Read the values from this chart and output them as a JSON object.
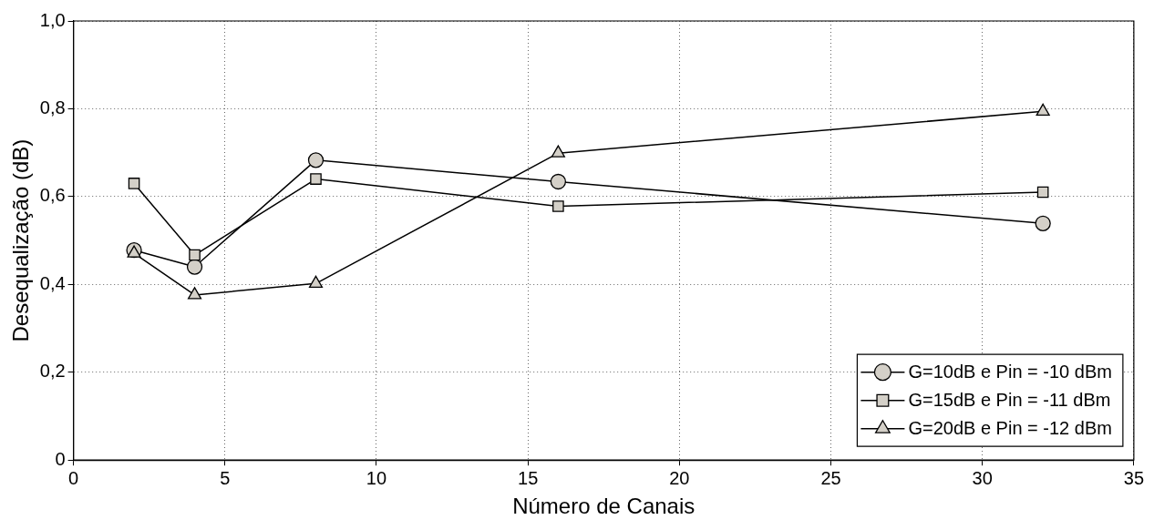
{
  "chart_data": {
    "type": "line",
    "xlabel": "Número de Canais",
    "ylabel": "Desequalização (dB)",
    "x": [
      2,
      4,
      8,
      16,
      32
    ],
    "series": [
      {
        "name": "G=10dB e Pin = -10 dBm",
        "color": "#d4d0c8",
        "marker": "circle",
        "values": [
          0.478,
          0.44,
          0.683,
          0.634,
          0.539
        ]
      },
      {
        "name": "G=15dB e Pin = -11 dBm",
        "color": "#d4d0c8",
        "marker": "square",
        "values": [
          0.63,
          0.467,
          0.64,
          0.578,
          0.61
        ]
      },
      {
        "name": "G=20dB e Pin = -12 dBm",
        "color": "#d4d0c8",
        "marker": "triangle",
        "values": [
          0.471,
          0.376,
          0.402,
          0.699,
          0.794
        ]
      }
    ],
    "xlim": [
      0,
      35
    ],
    "xticks": [
      0,
      5,
      10,
      15,
      20,
      25,
      30,
      35
    ],
    "ylim": [
      0,
      1
    ],
    "yticks": [
      {
        "value": 0,
        "label": "0"
      },
      {
        "value": 0.2,
        "label": "0,2"
      },
      {
        "value": 0.4,
        "label": "0,4"
      },
      {
        "value": 0.6,
        "label": "0,6"
      },
      {
        "value": 0.8,
        "label": "0,8"
      },
      {
        "value": 1,
        "label": "1,0"
      }
    ],
    "grid": true,
    "legend": "bottom right",
    "line_style": "solid"
  }
}
